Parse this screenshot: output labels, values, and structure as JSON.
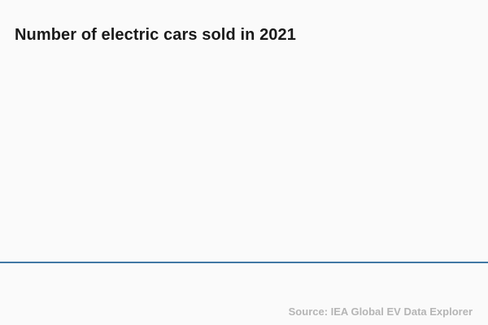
{
  "header": {
    "title": "Number of electric cars sold in 2021"
  },
  "footer": {
    "source_label": "Source: IEA Global EV Data Explorer"
  },
  "colors": {
    "background": "#fafafa",
    "title": "#1a1a1a",
    "baseline": "#4279a5",
    "source_text": "#b5b5b5"
  },
  "chart_data": {
    "type": "bar",
    "title": "Number of electric cars sold in 2021",
    "categories": [],
    "values": [],
    "xlabel": "",
    "ylabel": "",
    "legend": [],
    "grid": false,
    "annotations": [],
    "source": "Source: IEA Global EV Data Explorer",
    "plot_state": "empty - only x-axis baseline visible, no bars, ticks or labels rendered"
  }
}
